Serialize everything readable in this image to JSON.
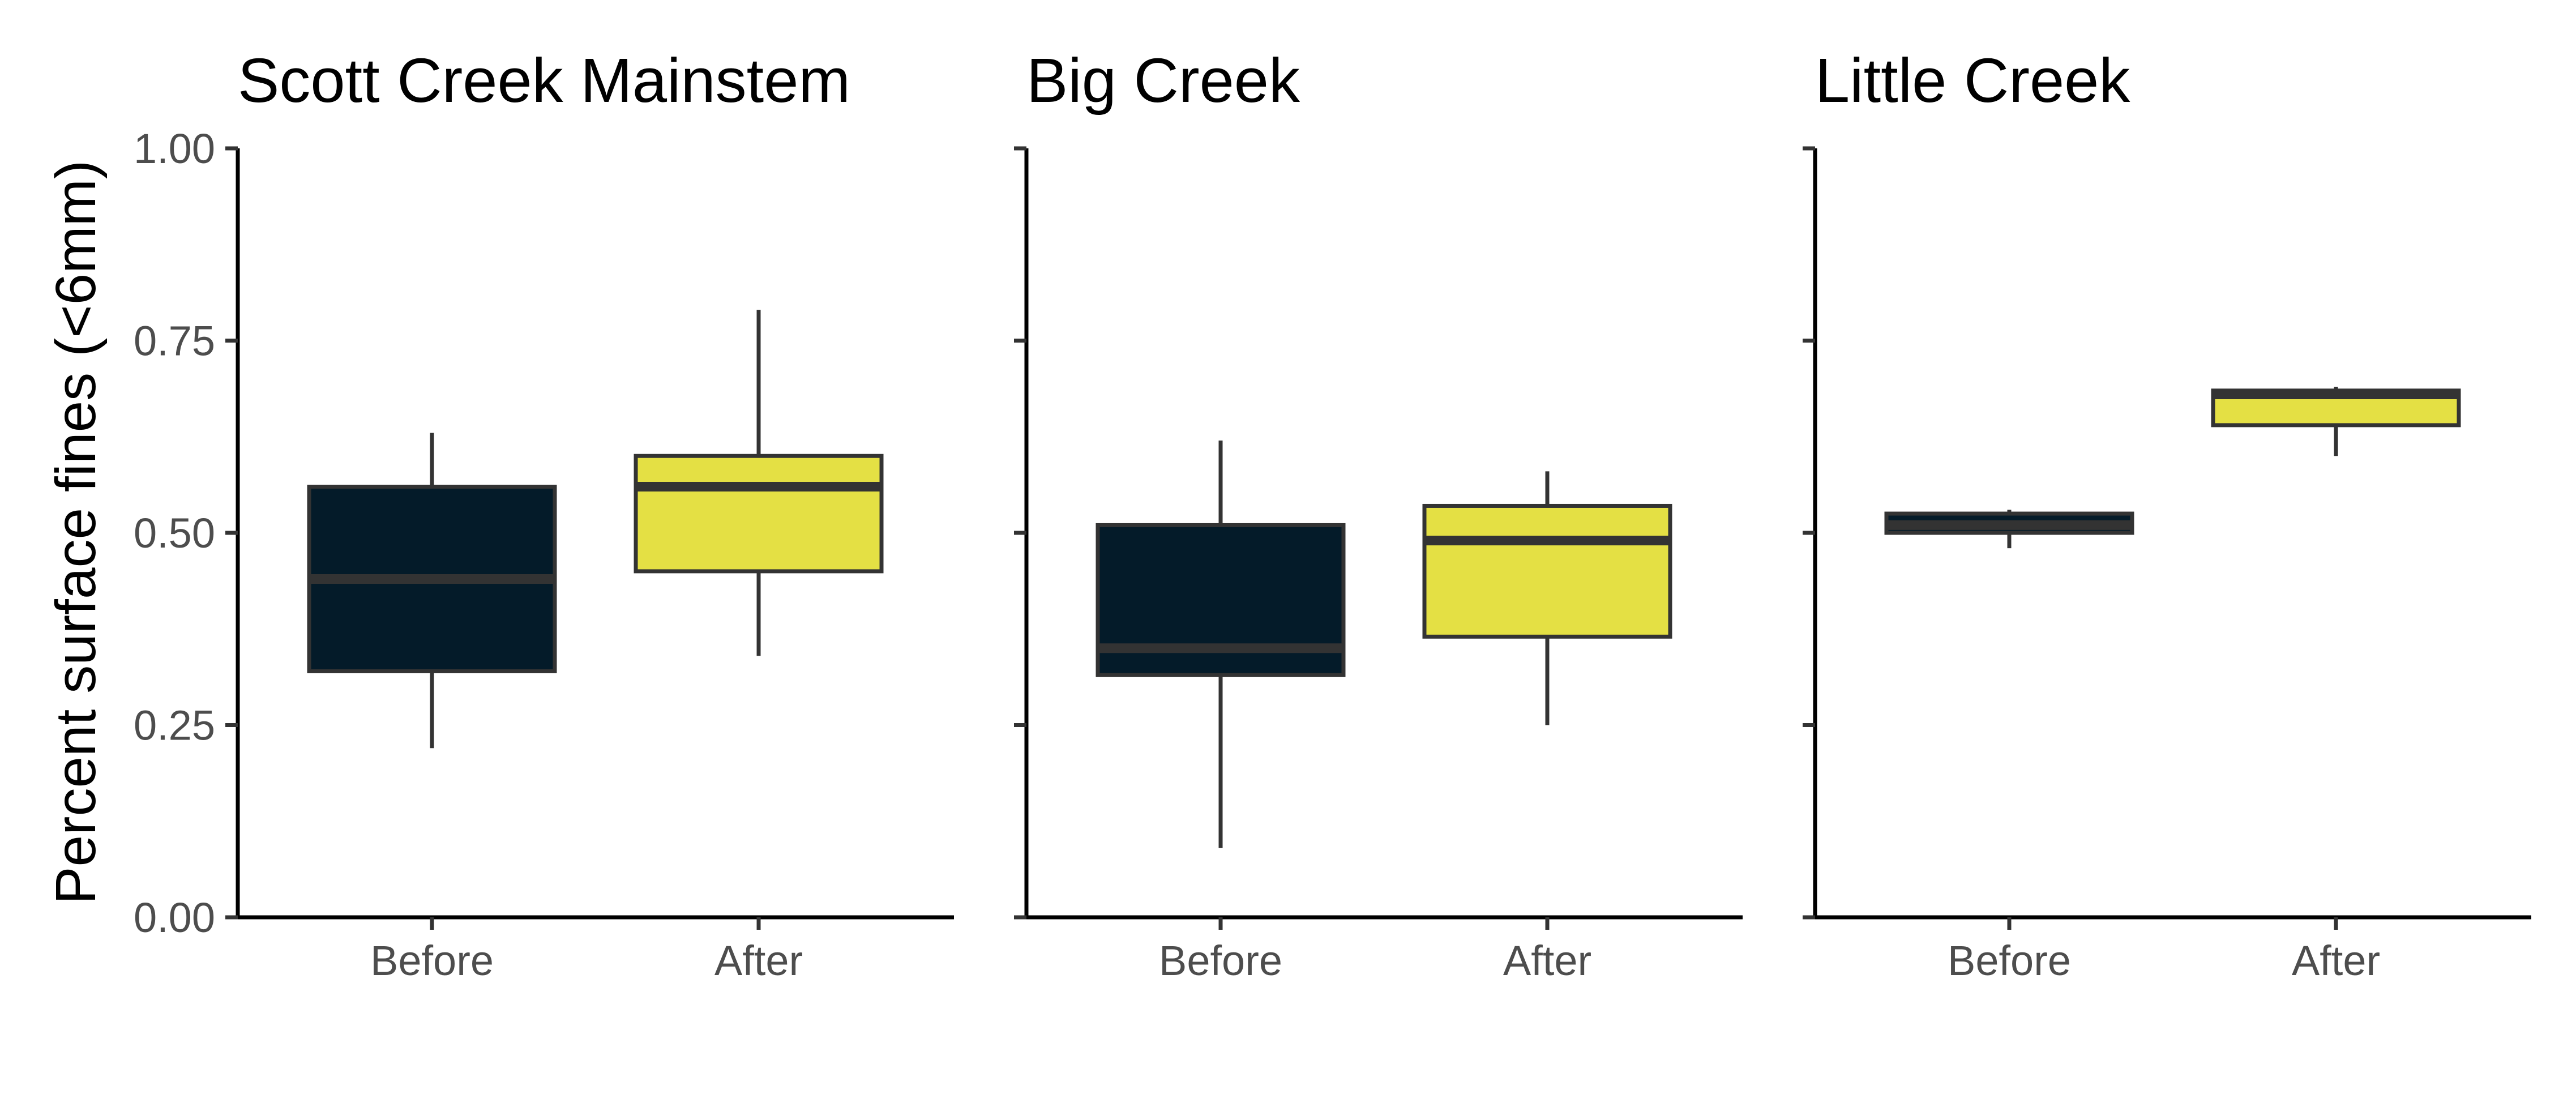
{
  "chart_data": {
    "type": "boxplot",
    "ylabel": "Percent surface fines (<6mm)",
    "xlabel": "",
    "ylim": [
      0,
      1
    ],
    "yticks": [
      "0.00",
      "0.25",
      "0.50",
      "0.75",
      "1.00"
    ],
    "categories": [
      "Before",
      "After"
    ],
    "grid": false,
    "legend": "none",
    "colors": {
      "Before": "#041b29",
      "After": "#e4e044",
      "outline": "#333333"
    },
    "panels": [
      {
        "title": "Scott Creek Mainstem",
        "boxes": [
          {
            "category": "Before",
            "min": 0.22,
            "q1": 0.32,
            "median": 0.44,
            "q3": 0.56,
            "max": 0.63
          },
          {
            "category": "After",
            "min": 0.34,
            "q1": 0.45,
            "median": 0.56,
            "q3": 0.6,
            "max": 0.79
          }
        ]
      },
      {
        "title": "Big Creek",
        "boxes": [
          {
            "category": "Before",
            "min": 0.09,
            "q1": 0.315,
            "median": 0.35,
            "q3": 0.51,
            "max": 0.62
          },
          {
            "category": "After",
            "min": 0.25,
            "q1": 0.365,
            "median": 0.49,
            "q3": 0.535,
            "max": 0.58
          }
        ]
      },
      {
        "title": "Little Creek",
        "boxes": [
          {
            "category": "Before",
            "min": 0.48,
            "q1": 0.5,
            "median": 0.51,
            "q3": 0.525,
            "max": 0.53
          },
          {
            "category": "After",
            "min": 0.6,
            "q1": 0.64,
            "median": 0.68,
            "q3": 0.685,
            "max": 0.69
          }
        ]
      }
    ]
  }
}
